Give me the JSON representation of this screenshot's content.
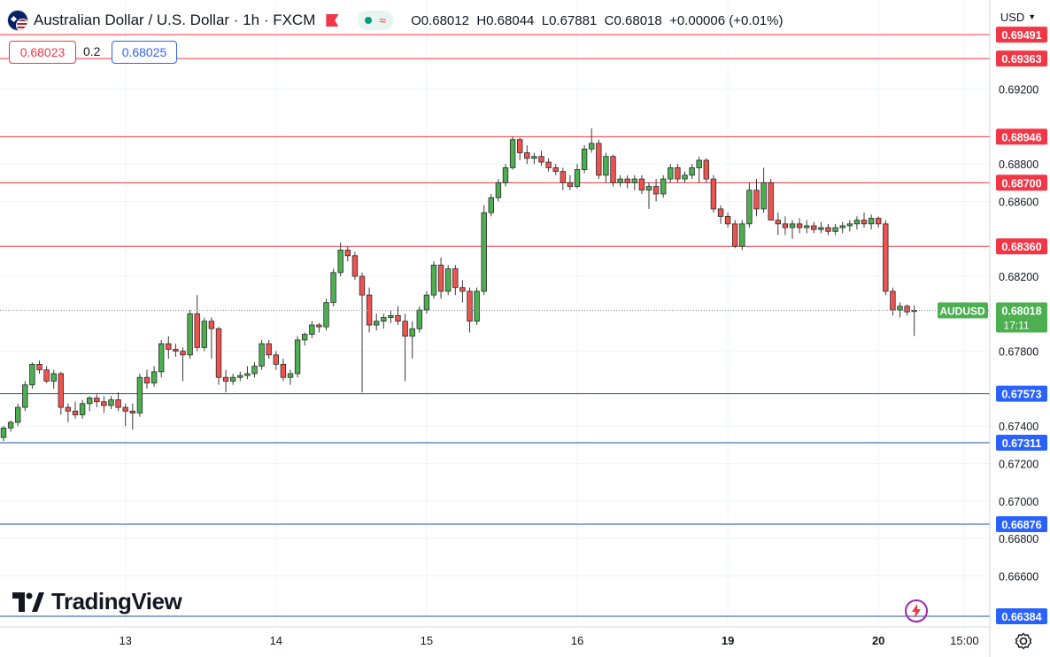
{
  "header": {
    "symbol_title": "Australian Dollar / U.S. Dollar · 1h · FXCM",
    "ohlc": {
      "open_label": "O",
      "open": "0.68012",
      "high_label": "H",
      "high": "0.68044",
      "low_label": "L",
      "low": "0.67881",
      "close_label": "C",
      "close": "0.68018",
      "change": "+0.00006 (+0.01%)"
    },
    "sell_price": "0.68023",
    "spread": "0.2",
    "buy_price": "0.68025",
    "currency": "USD"
  },
  "branding": {
    "logo_text": "TradingView"
  },
  "colors": {
    "up": "#26a69a",
    "up_fill": "#4caf50",
    "down": "#ef5350",
    "resistance": "#f23645",
    "support": "#2962ff",
    "label_support": "#2962ff",
    "current_price": "#4caf50"
  },
  "chart_data": {
    "type": "candlestick",
    "symbol": "AUDUSD",
    "interval": "1h",
    "y_axis": {
      "range": [
        0.6636,
        0.6964
      ],
      "tick_labels": [
        "0.66600",
        "0.66800",
        "0.67000",
        "0.67200",
        "0.67400",
        "0.67800",
        "0.68200",
        "0.68600",
        "0.68800",
        "0.69200"
      ]
    },
    "x_axis": {
      "tick_labels": [
        "13",
        "14",
        "15",
        "16",
        "19",
        "20",
        "15:00"
      ],
      "tick_positions_bar_index": [
        17,
        38,
        59,
        80,
        101,
        122,
        134
      ]
    },
    "horizontal_levels": [
      {
        "price": 0.69491,
        "label": "0.69491",
        "kind": "resistance"
      },
      {
        "price": 0.69363,
        "label": "0.69363",
        "kind": "resistance"
      },
      {
        "price": 0.68946,
        "label": "0.68946",
        "kind": "resistance"
      },
      {
        "price": 0.687,
        "label": "0.68700",
        "kind": "resistance"
      },
      {
        "price": 0.6836,
        "label": "0.68360",
        "kind": "resistance"
      },
      {
        "price": 0.67573,
        "label": "0.67573",
        "kind": "support"
      },
      {
        "price": 0.67311,
        "label": "0.67311",
        "kind": "support"
      },
      {
        "price": 0.66876,
        "label": "0.66876",
        "kind": "support"
      },
      {
        "price": 0.66384,
        "label": "0.66384",
        "kind": "support"
      }
    ],
    "current_price": {
      "price": 0.68018,
      "label": "0.68018",
      "countdown": "17:11",
      "symbol_label": "AUDUSD"
    },
    "candles": [
      [
        0.67339,
        0.67402,
        0.6732,
        0.6739
      ],
      [
        0.6739,
        0.6743,
        0.6737,
        0.6742
      ],
      [
        0.6742,
        0.6752,
        0.674,
        0.675
      ],
      [
        0.675,
        0.6764,
        0.6748,
        0.6762
      ],
      [
        0.6762,
        0.6774,
        0.676,
        0.6773
      ],
      [
        0.6773,
        0.6775,
        0.6768,
        0.677
      ],
      [
        0.677,
        0.6772,
        0.6763,
        0.6764
      ],
      [
        0.6764,
        0.677,
        0.676,
        0.6768
      ],
      [
        0.6768,
        0.6769,
        0.6746,
        0.675
      ],
      [
        0.675,
        0.6752,
        0.6742,
        0.6748
      ],
      [
        0.6748,
        0.6753,
        0.6744,
        0.6746
      ],
      [
        0.6746,
        0.6754,
        0.6744,
        0.6752
      ],
      [
        0.6752,
        0.6756,
        0.6748,
        0.6755
      ],
      [
        0.6755,
        0.6757,
        0.675,
        0.6753
      ],
      [
        0.6753,
        0.6756,
        0.6747,
        0.6751
      ],
      [
        0.6751,
        0.6756,
        0.6749,
        0.6754
      ],
      [
        0.6754,
        0.6758,
        0.6748,
        0.675
      ],
      [
        0.675,
        0.6752,
        0.674,
        0.6748
      ],
      [
        0.6748,
        0.6752,
        0.6738,
        0.6747
      ],
      [
        0.6747,
        0.6768,
        0.6745,
        0.6766
      ],
      [
        0.6766,
        0.677,
        0.676,
        0.6763
      ],
      [
        0.6763,
        0.6772,
        0.6761,
        0.6769
      ],
      [
        0.6769,
        0.6786,
        0.6766,
        0.6784
      ],
      [
        0.6784,
        0.6788,
        0.6776,
        0.6781
      ],
      [
        0.6781,
        0.6784,
        0.6777,
        0.678
      ],
      [
        0.678,
        0.6782,
        0.6764,
        0.6778
      ],
      [
        0.6778,
        0.6802,
        0.6776,
        0.68
      ],
      [
        0.68,
        0.681,
        0.678,
        0.6782
      ],
      [
        0.6782,
        0.6798,
        0.678,
        0.6796
      ],
      [
        0.6796,
        0.6798,
        0.6776,
        0.6792
      ],
      [
        0.6792,
        0.6793,
        0.6762,
        0.6766
      ],
      [
        0.6766,
        0.677,
        0.6758,
        0.6764
      ],
      [
        0.6764,
        0.6768,
        0.6762,
        0.6766
      ],
      [
        0.6766,
        0.6769,
        0.6764,
        0.6767
      ],
      [
        0.6767,
        0.6772,
        0.6765,
        0.6768
      ],
      [
        0.6768,
        0.6774,
        0.6766,
        0.6772
      ],
      [
        0.6772,
        0.6786,
        0.677,
        0.6784
      ],
      [
        0.6784,
        0.6786,
        0.6776,
        0.6778
      ],
      [
        0.6778,
        0.678,
        0.677,
        0.6773
      ],
      [
        0.6773,
        0.6776,
        0.6764,
        0.6766
      ],
      [
        0.6766,
        0.677,
        0.6762,
        0.6768
      ],
      [
        0.6768,
        0.6788,
        0.6766,
        0.6786
      ],
      [
        0.6786,
        0.679,
        0.6783,
        0.6789
      ],
      [
        0.6789,
        0.6796,
        0.6787,
        0.6794
      ],
      [
        0.6794,
        0.6795,
        0.679,
        0.6793
      ],
      [
        0.6793,
        0.6808,
        0.6791,
        0.6806
      ],
      [
        0.6806,
        0.6824,
        0.6804,
        0.6822
      ],
      [
        0.6822,
        0.6838,
        0.682,
        0.6834
      ],
      [
        0.6834,
        0.6836,
        0.6828,
        0.6831
      ],
      [
        0.6831,
        0.6833,
        0.6818,
        0.682
      ],
      [
        0.682,
        0.6822,
        0.6758,
        0.681
      ],
      [
        0.681,
        0.6814,
        0.679,
        0.6794
      ],
      [
        0.6794,
        0.68,
        0.6791,
        0.6796
      ],
      [
        0.6796,
        0.68,
        0.6792,
        0.6798
      ],
      [
        0.6798,
        0.6802,
        0.6795,
        0.6799
      ],
      [
        0.6799,
        0.6804,
        0.6794,
        0.6796
      ],
      [
        0.6796,
        0.68,
        0.6764,
        0.6788
      ],
      [
        0.6788,
        0.6796,
        0.6776,
        0.6792
      ],
      [
        0.6792,
        0.6804,
        0.679,
        0.6802
      ],
      [
        0.6802,
        0.6812,
        0.68,
        0.681
      ],
      [
        0.681,
        0.6828,
        0.6808,
        0.6826
      ],
      [
        0.6826,
        0.683,
        0.6808,
        0.6812
      ],
      [
        0.6812,
        0.6826,
        0.681,
        0.6824
      ],
      [
        0.6824,
        0.6826,
        0.681,
        0.6814
      ],
      [
        0.6814,
        0.6818,
        0.6806,
        0.6812
      ],
      [
        0.6812,
        0.6814,
        0.679,
        0.6796
      ],
      [
        0.6796,
        0.6814,
        0.6794,
        0.6812
      ],
      [
        0.6812,
        0.6858,
        0.681,
        0.6854
      ],
      [
        0.6854,
        0.6864,
        0.6852,
        0.6862
      ],
      [
        0.6862,
        0.6872,
        0.686,
        0.687
      ],
      [
        0.687,
        0.688,
        0.6868,
        0.6878
      ],
      [
        0.6878,
        0.68946,
        0.6877,
        0.6893
      ],
      [
        0.6893,
        0.6894,
        0.6882,
        0.6886
      ],
      [
        0.6886,
        0.689,
        0.688,
        0.6883
      ],
      [
        0.6883,
        0.6886,
        0.688,
        0.6884
      ],
      [
        0.6884,
        0.6887,
        0.6879,
        0.6881
      ],
      [
        0.6881,
        0.6883,
        0.6876,
        0.6878
      ],
      [
        0.6878,
        0.688,
        0.6874,
        0.6876
      ],
      [
        0.6876,
        0.6878,
        0.6866,
        0.687
      ],
      [
        0.687,
        0.6874,
        0.6866,
        0.6868
      ],
      [
        0.6868,
        0.688,
        0.6867,
        0.6877
      ],
      [
        0.6877,
        0.689,
        0.6875,
        0.6888
      ],
      [
        0.6888,
        0.6899,
        0.6886,
        0.6891
      ],
      [
        0.6891,
        0.6893,
        0.6872,
        0.6874
      ],
      [
        0.6874,
        0.6886,
        0.687,
        0.6884
      ],
      [
        0.6884,
        0.6885,
        0.6868,
        0.687
      ],
      [
        0.687,
        0.6874,
        0.6868,
        0.6872
      ],
      [
        0.6872,
        0.6874,
        0.6867,
        0.687
      ],
      [
        0.687,
        0.6874,
        0.6866,
        0.6872
      ],
      [
        0.6872,
        0.6874,
        0.6864,
        0.6866
      ],
      [
        0.6866,
        0.687,
        0.6856,
        0.6868
      ],
      [
        0.6868,
        0.6872,
        0.686,
        0.6864
      ],
      [
        0.6864,
        0.6874,
        0.6862,
        0.6872
      ],
      [
        0.6872,
        0.688,
        0.687,
        0.6878
      ],
      [
        0.6878,
        0.688,
        0.687,
        0.6872
      ],
      [
        0.6872,
        0.6876,
        0.687,
        0.6874
      ],
      [
        0.6874,
        0.688,
        0.6872,
        0.6878
      ],
      [
        0.6878,
        0.6884,
        0.687,
        0.6882
      ],
      [
        0.6882,
        0.6883,
        0.687,
        0.6872
      ],
      [
        0.6872,
        0.6874,
        0.6854,
        0.6856
      ],
      [
        0.6856,
        0.6858,
        0.6848,
        0.6852
      ],
      [
        0.6852,
        0.6854,
        0.6846,
        0.6848
      ],
      [
        0.6848,
        0.685,
        0.6835,
        0.6836
      ],
      [
        0.6836,
        0.685,
        0.6834,
        0.6848
      ],
      [
        0.6848,
        0.687,
        0.6846,
        0.6866
      ],
      [
        0.6866,
        0.6872,
        0.6852,
        0.6856
      ],
      [
        0.6856,
        0.6878,
        0.6854,
        0.687
      ],
      [
        0.687,
        0.6872,
        0.685,
        0.685
      ],
      [
        0.685,
        0.6854,
        0.6842,
        0.6848
      ],
      [
        0.6848,
        0.6852,
        0.6842,
        0.6846
      ],
      [
        0.6846,
        0.685,
        0.684,
        0.6848
      ],
      [
        0.6848,
        0.6851,
        0.6843,
        0.6846
      ],
      [
        0.6846,
        0.685,
        0.6843,
        0.6847
      ],
      [
        0.6847,
        0.6849,
        0.6843,
        0.6845
      ],
      [
        0.6845,
        0.6849,
        0.6843,
        0.6846
      ],
      [
        0.6846,
        0.6848,
        0.6842,
        0.6844
      ],
      [
        0.6844,
        0.6848,
        0.6842,
        0.6846
      ],
      [
        0.6846,
        0.6849,
        0.6843,
        0.6847
      ],
      [
        0.6847,
        0.685,
        0.6844,
        0.6848
      ],
      [
        0.6848,
        0.6852,
        0.6845,
        0.685
      ],
      [
        0.685,
        0.6854,
        0.6846,
        0.6848
      ],
      [
        0.6848,
        0.6853,
        0.6845,
        0.6851
      ],
      [
        0.6851,
        0.6852,
        0.6846,
        0.6848
      ],
      [
        0.6848,
        0.685,
        0.681,
        0.6812
      ],
      [
        0.6812,
        0.6814,
        0.6799,
        0.6802
      ],
      [
        0.6802,
        0.6806,
        0.6798,
        0.6804
      ],
      [
        0.6804,
        0.6805,
        0.6799,
        0.6801
      ],
      [
        0.68012,
        0.68044,
        0.67881,
        0.68018
      ]
    ]
  }
}
